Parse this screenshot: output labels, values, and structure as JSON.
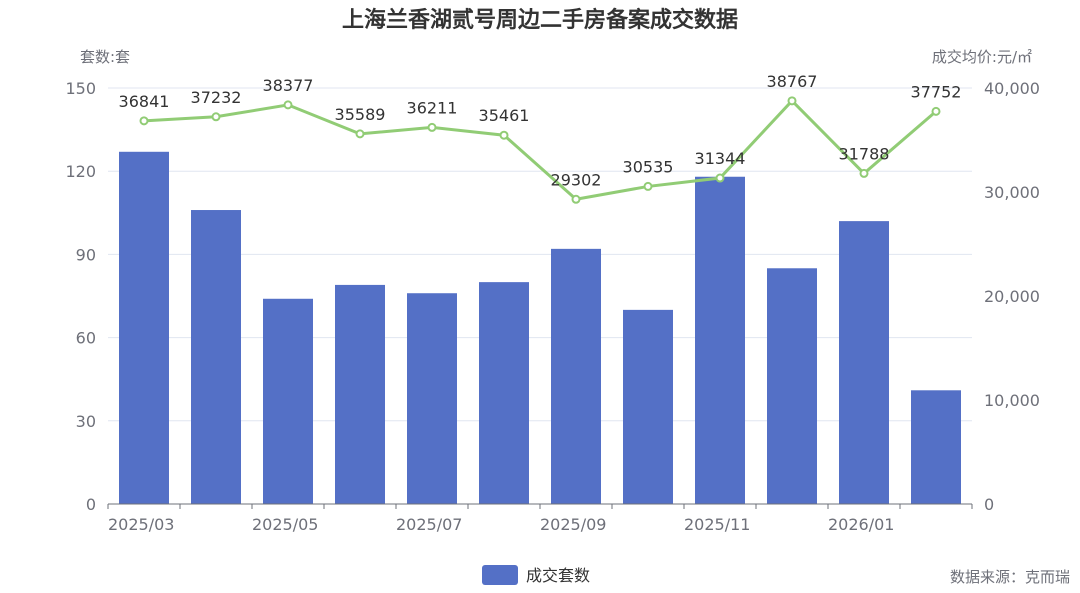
{
  "chart_data": {
    "type": "bar",
    "title": "上海兰香湖贰号周边二手房备案成交数据",
    "ylabel_left": "套数:套",
    "ylabel_right": "成交均价:元/㎡",
    "x": [
      "2025/03",
      "2025/04",
      "2025/05",
      "2025/06",
      "2025/07",
      "2025/08",
      "2025/09",
      "2025/10",
      "2025/11",
      "2025/12",
      "2026/01",
      "2026/02"
    ],
    "xtick_labels": [
      "2025/03",
      "2025/05",
      "2025/07",
      "2025/09",
      "2025/11",
      "2026/01"
    ],
    "ylim_left": [
      0,
      150
    ],
    "yticks_left": [
      "0",
      "30",
      "60",
      "90",
      "120",
      "150"
    ],
    "ylim_right": [
      0,
      40000
    ],
    "yticks_right": [
      "0",
      "10,000",
      "20,000",
      "30,000",
      "40,000"
    ],
    "series": [
      {
        "name": "成交套数",
        "type": "bar",
        "axis": "left",
        "values": [
          127,
          106,
          74,
          79,
          76,
          80,
          92,
          70,
          118,
          85,
          102,
          41
        ]
      },
      {
        "name": "",
        "type": "line",
        "axis": "right",
        "values": [
          36841,
          37232,
          38377,
          35589,
          36211,
          35461,
          29302,
          30535,
          31344,
          38767,
          31788,
          37752
        ],
        "labels": [
          "36841",
          "37232",
          "38377",
          "35589",
          "36211",
          "35461",
          "29302",
          "30535",
          "31344",
          "38767",
          "31788",
          "37752"
        ]
      }
    ],
    "legend": {
      "label": "成交套数",
      "position": "bottom-center"
    },
    "colors": {
      "bar": "#5470c6",
      "line": "#91cc75",
      "grid": "#e0e6f1",
      "axis": "#6e7079"
    },
    "grid": true
  },
  "source": "数据来源：克而瑞"
}
